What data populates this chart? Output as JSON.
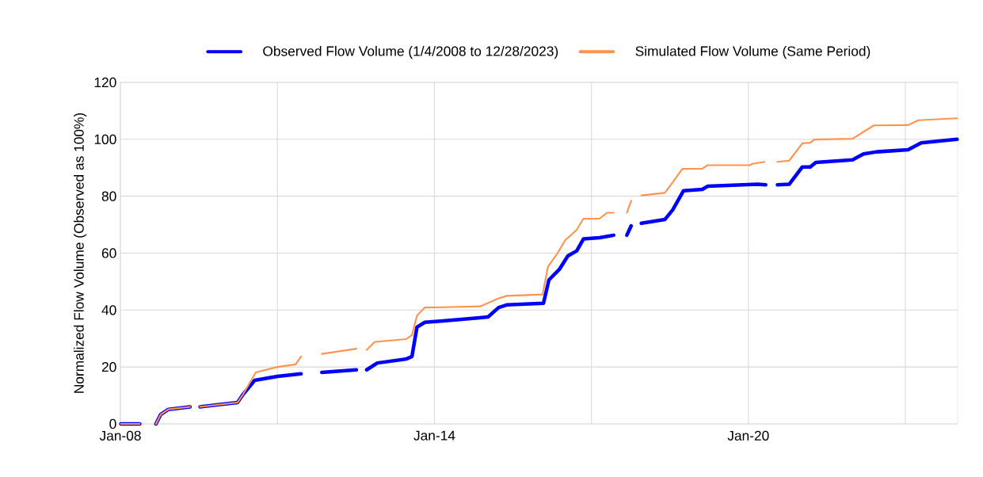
{
  "chart_data": {
    "type": "line",
    "ylabel": "Normalized Flow Volume (Observed as 100%)",
    "xlim": [
      "2008-01-01",
      "2024-01-01"
    ],
    "xticks": [
      {
        "value": "2008-01-01",
        "label": "Jan-08"
      },
      {
        "value": "2011-01-01",
        "label": null
      },
      {
        "value": "2014-01-01",
        "label": "Jan-14"
      },
      {
        "value": "2017-01-01",
        "label": null
      },
      {
        "value": "2020-01-01",
        "label": "Jan-20"
      },
      {
        "value": "2023-01-01",
        "label": null
      }
    ],
    "ylim": [
      0,
      120
    ],
    "yticks": [
      0,
      20,
      40,
      60,
      80,
      100,
      120
    ],
    "grid": true,
    "legend": "top",
    "marker": "none",
    "line_style": "solid",
    "series": [
      {
        "name": "Observed Flow Volume (1/4/2008 to 12/28/2023)",
        "color": "#0000ff",
        "x": [
          "2008-01-04",
          "2008-05-15",
          "2008-07-01",
          "2008-09-05",
          "2008-10-08",
          "2008-12-01",
          "2009-05-01",
          "2009-05-20",
          "2009-07-10",
          "2010-03-28",
          "2010-05-05",
          "2010-07-26",
          "2011-01-01",
          "2011-06-15",
          "2011-07-15",
          "2011-11-07",
          "2012-07-05",
          "2012-08-01",
          "2012-09-15",
          "2012-11-28",
          "2013-06-18",
          "2013-07-28",
          "2013-09-01",
          "2013-10-26",
          "2014-03-03",
          "2014-11-15",
          "2015-01-10",
          "2015-03-25",
          "2015-05-20",
          "2016-02-01",
          "2016-03-10",
          "2016-05-22",
          "2016-07-20",
          "2016-09-20",
          "2016-11-06",
          "2017-02-25",
          "2017-06-05",
          "2017-07-20",
          "2017-09-05",
          "2017-10-05",
          "2017-11-10",
          "2017-12-15",
          "2018-05-28",
          "2018-07-22",
          "2018-10-05",
          "2019-02-14",
          "2019-03-22",
          "2020-03-05",
          "2020-05-01",
          "2020-06-15",
          "2020-07-22",
          "2020-10-12",
          "2021-01-12",
          "2021-03-08",
          "2021-04-16",
          "2021-12-28",
          "2022-03-15",
          "2022-06-14",
          "2023-01-20",
          "2023-04-22",
          "2023-12-28"
        ],
        "values": [
          0,
          0,
          null,
          0,
          3.3,
          5.1,
          6.0,
          null,
          6.0,
          7.5,
          10.3,
          15.3,
          16.7,
          17.6,
          null,
          18.1,
          19.0,
          null,
          19.0,
          21.4,
          22.8,
          23.7,
          34.0,
          35.7,
          36.2,
          37.3,
          37.6,
          40.9,
          41.8,
          42.4,
          50.6,
          54.3,
          59.0,
          60.8,
          65.0,
          65.4,
          66.3,
          null,
          66.3,
          69.6,
          null,
          70.5,
          71.8,
          75.2,
          81.9,
          82.4,
          83.5,
          84.2,
          84.0,
          null,
          84.0,
          84.2,
          90.3,
          90.3,
          91.9,
          92.8,
          94.9,
          95.6,
          96.3,
          98.8,
          100
        ]
      },
      {
        "name": "Simulated Flow Volume (Same Period)",
        "color": "#ff9450",
        "x": [
          "2008-01-04",
          "2008-05-15",
          "2008-07-01",
          "2008-09-05",
          "2008-10-08",
          "2008-12-01",
          "2009-05-01",
          "2009-05-20",
          "2009-07-10",
          "2010-03-28",
          "2010-05-05",
          "2010-08-03",
          "2011-01-01",
          "2011-05-08",
          "2011-06-15",
          "2011-07-15",
          "2011-11-07",
          "2012-07-05",
          "2012-08-01",
          "2012-09-15",
          "2012-11-10",
          "2013-06-18",
          "2013-07-28",
          "2013-09-01",
          "2013-10-26",
          "2014-03-03",
          "2014-11-16",
          "2015-03-25",
          "2015-05-22",
          "2016-01-26",
          "2016-03-03",
          "2016-05-08",
          "2016-07-01",
          "2016-09-20",
          "2016-11-06",
          "2017-02-25",
          "2017-04-20",
          "2017-06-05",
          "2017-07-20",
          "2017-09-05",
          "2017-10-05",
          "2017-11-10",
          "2017-12-15",
          "2018-05-28",
          "2018-07-22",
          "2018-09-27",
          "2019-02-14",
          "2019-03-22",
          "2020-01-11",
          "2020-01-30",
          "2020-04-22",
          "2020-06-15",
          "2020-07-22",
          "2020-10-12",
          "2021-01-12",
          "2021-03-08",
          "2021-04-05",
          "2021-12-28",
          "2022-05-26",
          "2023-01-20",
          "2023-04-01",
          "2023-12-28"
        ],
        "values": [
          0,
          0,
          null,
          0,
          3.3,
          5.1,
          6.0,
          null,
          6.0,
          7.5,
          10.3,
          18.1,
          20.0,
          20.9,
          23.7,
          null,
          24.6,
          26.4,
          null,
          26.0,
          28.8,
          29.8,
          31.2,
          38.1,
          40.9,
          41.0,
          41.3,
          44.1,
          45.0,
          45.5,
          55.2,
          59.9,
          64.5,
          68.2,
          72.1,
          72.1,
          74.2,
          74.2,
          null,
          74.2,
          78.4,
          null,
          80.3,
          81.2,
          84.9,
          89.6,
          89.7,
          90.9,
          90.9,
          91.4,
          92.1,
          null,
          92.1,
          92.5,
          98.6,
          98.8,
          99.9,
          100.2,
          104.9,
          105.0,
          106.7,
          107.4
        ]
      }
    ]
  }
}
